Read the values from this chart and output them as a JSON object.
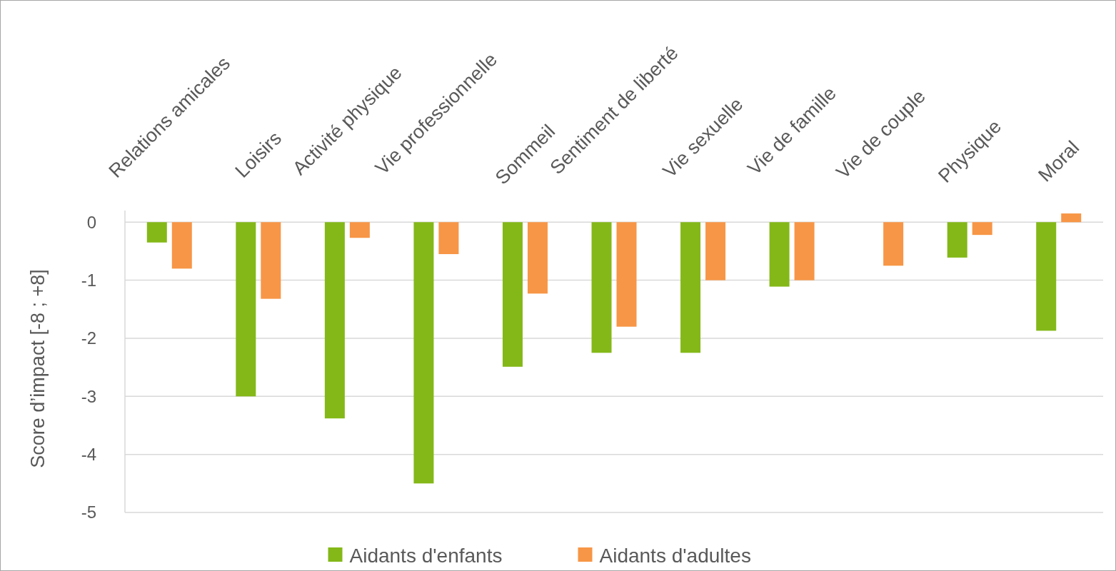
{
  "chart_data": {
    "type": "bar",
    "ylabel": "Score d’impact [-8 ; +8]",
    "categories": [
      "Relations amicales",
      "Loisirs",
      "Activité physique",
      "Vie professionnelle",
      "Sommeil",
      "Sentiment de liberté",
      "Vie sexuelle",
      "Vie de famille",
      "Vie de couple",
      "Physique",
      "Moral"
    ],
    "series": [
      {
        "name": "Aidants d'enfants",
        "color": "#84b818",
        "values": [
          -0.35,
          -3.0,
          -3.38,
          -4.5,
          -2.49,
          -2.25,
          -2.25,
          -1.11,
          null,
          -0.61,
          -1.87
        ]
      },
      {
        "name": "Aidants d'adultes",
        "color": "#f79646",
        "values": [
          -0.8,
          -1.32,
          -0.27,
          -0.55,
          -1.23,
          -1.8,
          -1.0,
          -1.0,
          -0.75,
          -0.22,
          0.15
        ]
      }
    ],
    "ylim": [
      -5,
      0.2
    ],
    "yticks": [
      0,
      -1,
      -2,
      -3,
      -4,
      -5
    ],
    "grid": "y",
    "legend": "bottom"
  }
}
